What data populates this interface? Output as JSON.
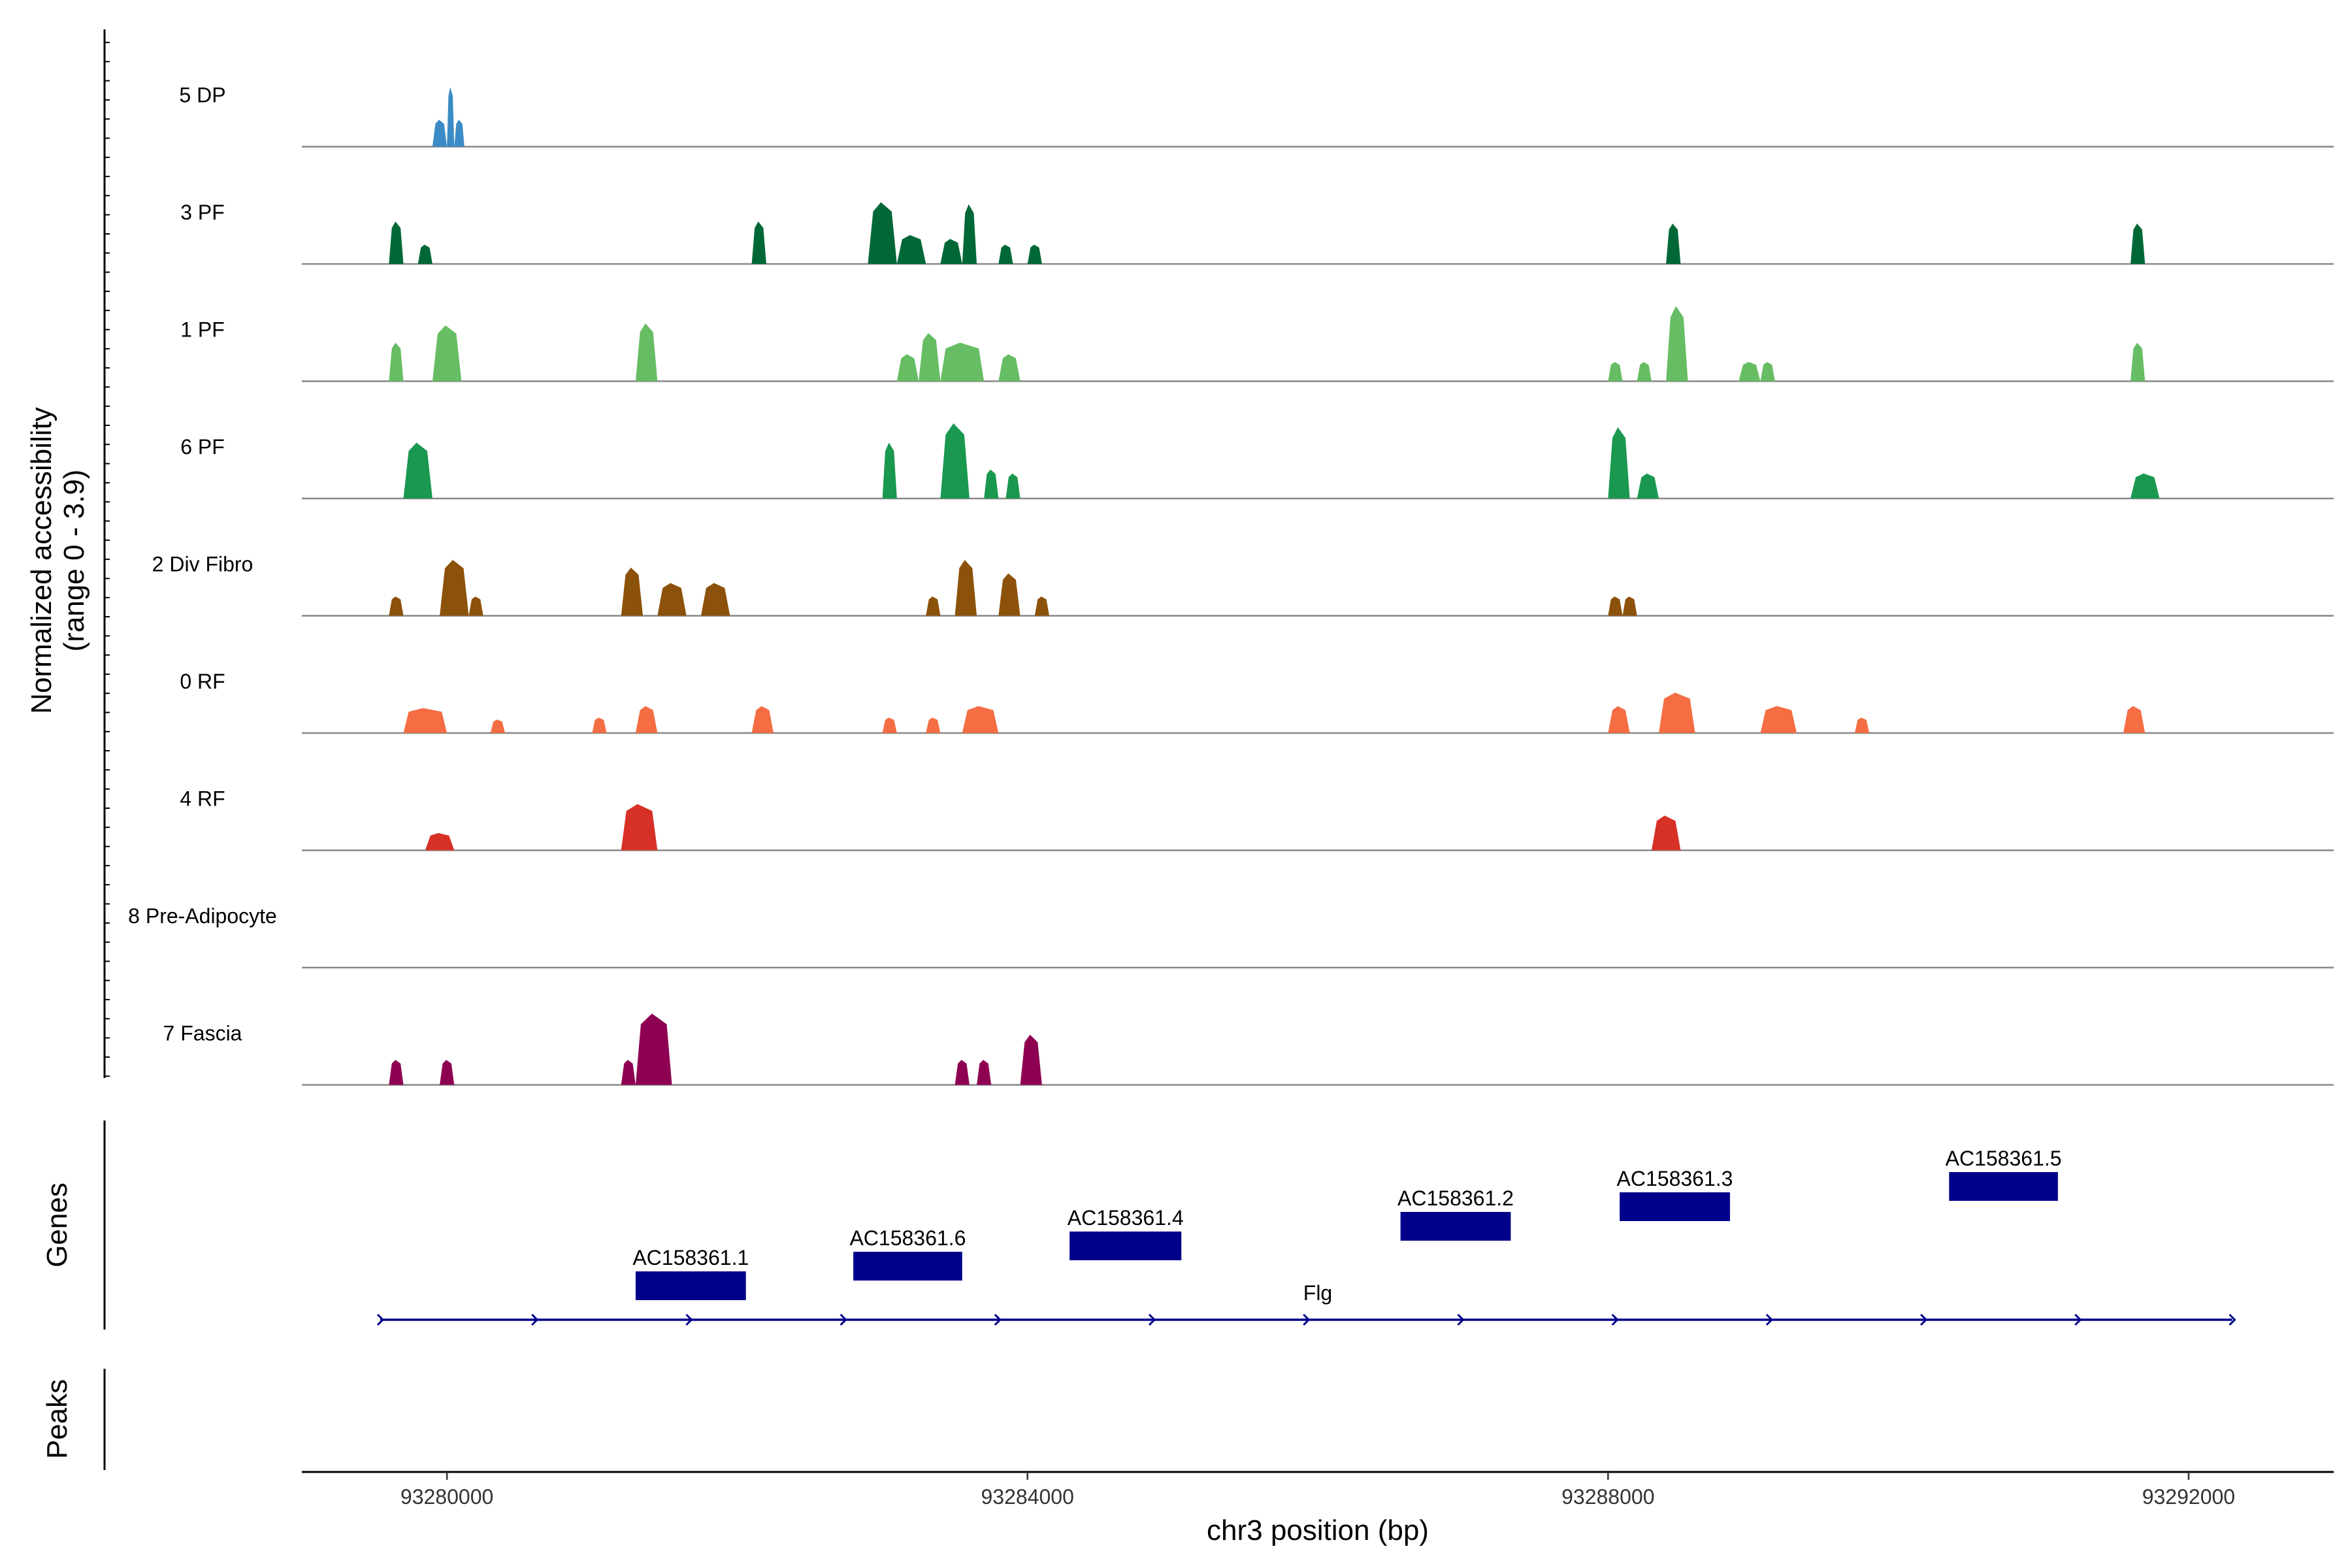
{
  "chart_data": {
    "type": "area",
    "title": "",
    "ylabel_lines": [
      "Normalized accessibility",
      "(range 0 - 3.9)"
    ],
    "ylim": [
      0,
      3.9
    ],
    "xlabel": "chr3 position (bp)",
    "xlim": [
      93279000,
      93293000
    ],
    "xticks": [
      93280000,
      93284000,
      93288000,
      93292000
    ],
    "tracks": [
      {
        "name": "5 DP",
        "color": "#3b8bc6",
        "peaks": [
          [
            93279900,
            93280000,
            1.4
          ],
          [
            93280000,
            93280050,
            3.1
          ],
          [
            93280050,
            93280120,
            1.4
          ]
        ]
      },
      {
        "name": "3 PF",
        "color": "#006837",
        "peaks": [
          [
            93279600,
            93279700,
            2.2
          ],
          [
            93279800,
            93279900,
            1.0
          ],
          [
            93282100,
            93282200,
            2.2
          ],
          [
            93282900,
            93283100,
            3.2
          ],
          [
            93283100,
            93283300,
            1.5
          ],
          [
            93283400,
            93283550,
            1.3
          ],
          [
            93283550,
            93283650,
            3.1
          ],
          [
            93283800,
            93283900,
            1.0
          ],
          [
            93284000,
            93284100,
            1.0
          ],
          [
            93288400,
            93288500,
            2.1
          ],
          [
            93291600,
            93291700,
            2.1
          ]
        ]
      },
      {
        "name": "1 PF",
        "color": "#66bd63",
        "peaks": [
          [
            93279600,
            93279700,
            2.0
          ],
          [
            93279900,
            93280100,
            2.9
          ],
          [
            93281300,
            93281450,
            3.0
          ],
          [
            93283100,
            93283250,
            1.4
          ],
          [
            93283250,
            93283400,
            2.5
          ],
          [
            93283400,
            93283700,
            2.0
          ],
          [
            93283800,
            93283950,
            1.4
          ],
          [
            93288000,
            93288100,
            1.0
          ],
          [
            93288200,
            93288300,
            1.0
          ],
          [
            93288400,
            93288550,
            3.9
          ],
          [
            93288900,
            93289050,
            1.0
          ],
          [
            93289050,
            93289150,
            1.0
          ],
          [
            93291600,
            93291700,
            2.0
          ]
        ]
      },
      {
        "name": "6 PF",
        "color": "#1a9850",
        "peaks": [
          [
            93279700,
            93279900,
            2.9
          ],
          [
            93283000,
            93283100,
            2.9
          ],
          [
            93283400,
            93283600,
            3.9
          ],
          [
            93283700,
            93283800,
            1.5
          ],
          [
            93283850,
            93283950,
            1.3
          ],
          [
            93288000,
            93288150,
            3.7
          ],
          [
            93288200,
            93288350,
            1.3
          ],
          [
            93291600,
            93291800,
            1.3
          ]
        ]
      },
      {
        "name": "2 Div Fibro",
        "color": "#8c510a",
        "peaks": [
          [
            93279600,
            93279700,
            1.0
          ],
          [
            93279950,
            93280150,
            2.9
          ],
          [
            93280150,
            93280250,
            1.0
          ],
          [
            93281200,
            93281350,
            2.5
          ],
          [
            93281450,
            93281650,
            1.7
          ],
          [
            93281750,
            93281950,
            1.7
          ],
          [
            93283300,
            93283400,
            1.0
          ],
          [
            93283500,
            93283650,
            2.9
          ],
          [
            93283800,
            93283950,
            2.2
          ],
          [
            93284050,
            93284150,
            1.0
          ],
          [
            93288000,
            93288100,
            1.0
          ],
          [
            93288100,
            93288200,
            1.0
          ]
        ]
      },
      {
        "name": "0 RF",
        "color": "#f46d43",
        "peaks": [
          [
            93279700,
            93280000,
            1.3
          ],
          [
            93280300,
            93280400,
            0.7
          ],
          [
            93281000,
            93281100,
            0.8
          ],
          [
            93281300,
            93281450,
            1.4
          ],
          [
            93282100,
            93282250,
            1.4
          ],
          [
            93283000,
            93283100,
            0.8
          ],
          [
            93283300,
            93283400,
            0.8
          ],
          [
            93283550,
            93283800,
            1.4
          ],
          [
            93288000,
            93288150,
            1.4
          ],
          [
            93288350,
            93288600,
            2.1
          ],
          [
            93289050,
            93289300,
            1.4
          ],
          [
            93289700,
            93289800,
            0.8
          ],
          [
            93291550,
            93291700,
            1.4
          ]
        ]
      },
      {
        "name": "4 RF",
        "color": "#d73027",
        "peaks": [
          [
            93279850,
            93280050,
            0.9
          ],
          [
            93281200,
            93281450,
            2.4
          ],
          [
            93288300,
            93288500,
            1.8
          ]
        ]
      },
      {
        "name": "8 Pre-Adipocyte",
        "color": "#1a9850",
        "peaks": []
      },
      {
        "name": "7 Fascia",
        "color": "#8e0152",
        "peaks": [
          [
            93279600,
            93279700,
            1.3
          ],
          [
            93279950,
            93280050,
            1.3
          ],
          [
            93281200,
            93281300,
            1.3
          ],
          [
            93281300,
            93281550,
            3.7
          ],
          [
            93283500,
            93283600,
            1.3
          ],
          [
            93283650,
            93283750,
            1.3
          ],
          [
            93283950,
            93284100,
            2.6
          ]
        ]
      }
    ],
    "genes_label": "Genes",
    "peaks_label": "Peaks",
    "genes": [
      {
        "name": "AC158361.1",
        "start": 93281300,
        "end": 93282060
      },
      {
        "name": "AC158361.6",
        "start": 93282800,
        "end": 93283550
      },
      {
        "name": "AC158361.4",
        "start": 93284290,
        "end": 93285060
      },
      {
        "name": "AC158361.2",
        "start": 93286570,
        "end": 93287330
      },
      {
        "name": "AC158361.3",
        "start": 93288080,
        "end": 93288840
      },
      {
        "name": "AC158361.5",
        "start": 93290350,
        "end": 93291100
      }
    ],
    "long_gene": {
      "name": "Flg",
      "start": 93279540,
      "end": 93292300
    }
  }
}
